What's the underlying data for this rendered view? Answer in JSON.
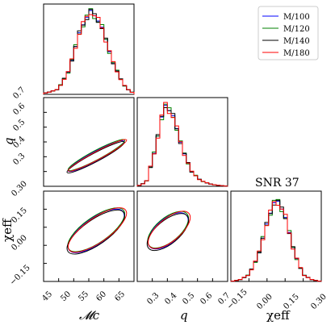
{
  "chart_data": {
    "type": "corner",
    "title": "SNR 37",
    "parameters": [
      {
        "label": "𝓜c",
        "range": [
          43,
          68
        ],
        "ticks": [
          "45",
          "50",
          "55",
          "60",
          "65"
        ]
      },
      {
        "label": "q",
        "range": [
          0.2,
          0.7
        ],
        "ticks": [
          "0.3",
          "0.4",
          "0.5",
          "0.6",
          "0.7"
        ],
        "y_ticks": [
          "0.3",
          "0.4",
          "0.5",
          "0.6",
          "0.7"
        ]
      },
      {
        "label": "χeff",
        "range": [
          -0.2,
          0.3
        ],
        "ticks": [
          "−0.15",
          "0.00",
          "0.15",
          "0.30"
        ],
        "y_ticks": [
          "−0.15",
          "0.00",
          "0.15",
          "0.30"
        ]
      }
    ],
    "series": [
      {
        "name": "M/100",
        "color": "#0000ff"
      },
      {
        "name": "M/120",
        "color": "#008000"
      },
      {
        "name": "M/140",
        "color": "#000000"
      },
      {
        "name": "M/180",
        "color": "#ff0000"
      }
    ],
    "marginals": {
      "mc": {
        "centers": [
          44,
          47,
          50,
          53,
          56,
          59,
          62,
          65,
          67
        ],
        "density": [
          0.02,
          0.06,
          0.28,
          0.75,
          1.0,
          0.82,
          0.4,
          0.12,
          0.03
        ]
      },
      "q": {
        "centers": [
          0.25,
          0.3,
          0.35,
          0.4,
          0.45,
          0.5,
          0.55,
          0.6,
          0.65
        ],
        "density": [
          0.05,
          0.45,
          1.0,
          0.85,
          0.45,
          0.18,
          0.07,
          0.03,
          0.01
        ]
      },
      "chi": {
        "centers": [
          -0.15,
          -0.1,
          -0.05,
          0.0,
          0.05,
          0.1,
          0.15,
          0.2,
          0.25
        ],
        "density": [
          0.02,
          0.08,
          0.3,
          0.7,
          1.0,
          0.78,
          0.35,
          0.08,
          0.02
        ]
      }
    },
    "contours": {
      "mc_q": {
        "center": [
          57.5,
          0.37
        ],
        "angle_deg": 28,
        "rx": 39,
        "ry": 6
      },
      "mc_chi": {
        "center": [
          57.5,
          0.08
        ],
        "angle_deg": 35,
        "rx": 41,
        "ry": 16
      },
      "q_chi": {
        "center": [
          0.37,
          0.08
        ],
        "angle_deg": 40,
        "rx": 30,
        "ry": 15
      }
    },
    "legend_position": "top-right"
  }
}
